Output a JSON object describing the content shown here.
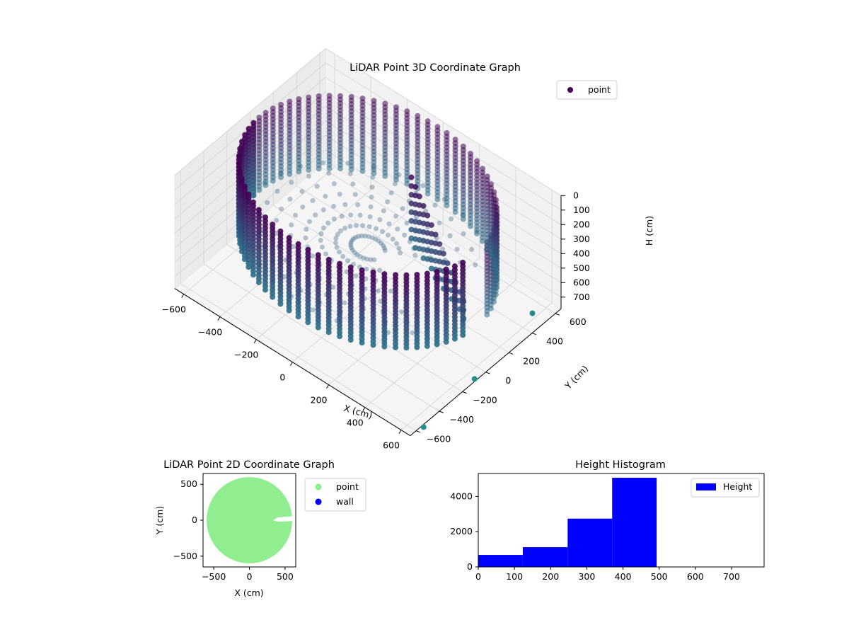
{
  "chart_data": [
    {
      "type": "scatter3d",
      "title": "LiDAR Point 3D Coordinate Graph",
      "xlabel": "X (cm)",
      "ylabel": "Y (cm)",
      "zlabel": "H (cm)",
      "legend": [
        "point"
      ],
      "legend_position": "top-right",
      "colormap": "viridis",
      "xlim": [
        -650,
        650
      ],
      "ylim": [
        -650,
        650
      ],
      "zlim": [
        0,
        780
      ],
      "z_inverted": true,
      "xticks": [
        -600,
        -400,
        -200,
        0,
        200,
        400,
        600
      ],
      "yticks": [
        -600,
        -400,
        -200,
        0,
        200,
        400,
        600
      ],
      "zticks": [
        0,
        100,
        200,
        300,
        400,
        500,
        600,
        700
      ],
      "shape": "cylindrical wall of radius ~600 cm, heights 0–500 cm, with an open sector near x>0,y≈0 and scattered interior points",
      "outliers": [
        {
          "x": 620,
          "y": 450,
          "h": 700
        },
        {
          "x": 640,
          "y": -80,
          "h": 780
        },
        {
          "x": 660,
          "y": -550,
          "h": 780
        }
      ],
      "grid": true
    },
    {
      "type": "scatter",
      "title": "LiDAR Point 2D Coordinate Graph",
      "xlabel": "X (cm)",
      "ylabel": "Y (cm)",
      "xlim": [
        -650,
        650
      ],
      "ylim": [
        -650,
        650
      ],
      "xticks": [
        -500,
        0,
        500
      ],
      "yticks": [
        500,
        0,
        -500
      ],
      "legend": [
        {
          "label": "point",
          "color": "#90ee90"
        },
        {
          "label": "wall",
          "color": "#0000ff"
        }
      ],
      "legend_position": "outside-right",
      "shape": "filled disk of radius ~600 cm centered at (0,0) with a thin gap near x=350..650, y≈0"
    },
    {
      "type": "bar",
      "title": "Height Histogram",
      "legend": [
        "Height"
      ],
      "legend_position": "top-right",
      "color": "#0000ff",
      "bins": [
        {
          "from": 0,
          "to": 123,
          "count": 680
        },
        {
          "from": 123,
          "to": 247,
          "count": 1120
        },
        {
          "from": 247,
          "to": 370,
          "count": 2740
        },
        {
          "from": 370,
          "to": 493,
          "count": 5060
        }
      ],
      "xlim": [
        0,
        790
      ],
      "ylim": [
        0,
        5300
      ],
      "xticks": [
        0,
        100,
        200,
        300,
        400,
        500,
        600,
        700
      ],
      "yticks": [
        0,
        2000,
        4000
      ]
    }
  ]
}
